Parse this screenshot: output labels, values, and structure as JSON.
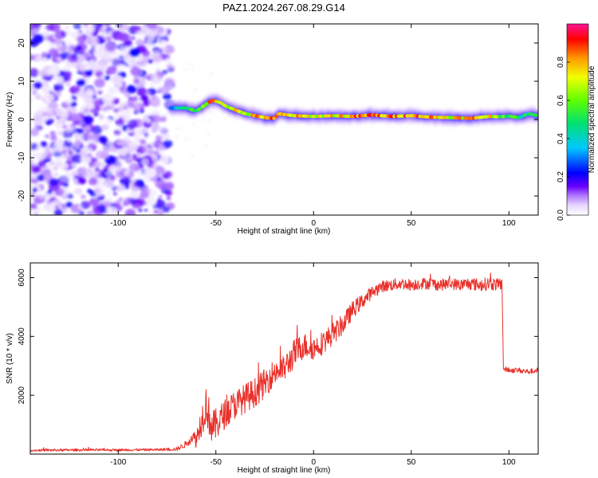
{
  "figure_title": "PAZ1.2024.267.08.29.G14",
  "colors": {
    "snr_line": "#e8302a",
    "colormap": [
      "#ffffff",
      "#e8d8ff",
      "#b27cff",
      "#6a00ff",
      "#0000ff",
      "#00c8ff",
      "#00e070",
      "#60ff00",
      "#f0ff00",
      "#ff9a00",
      "#ff0000",
      "#ff1493"
    ]
  },
  "chart_data": [
    {
      "type": "heatmap",
      "title": "",
      "xlabel": "Height of straight line (km)",
      "ylabel": "Frequency (Hz)",
      "xlim": [
        -145,
        115
      ],
      "ylim": [
        -25,
        25
      ],
      "x_ticks": [
        -100,
        -50,
        0,
        50,
        100
      ],
      "y_ticks": [
        -20,
        -10,
        0,
        10,
        20
      ],
      "colorbar": {
        "label": "Normalized spectral amplitude",
        "range": [
          0,
          1
        ],
        "ticks": [
          "0.0",
          "0.2",
          "0.4",
          "0.6",
          "0.8"
        ]
      },
      "noise_region_x": [
        -145,
        -73
      ],
      "ridge": {
        "x": [
          -73,
          -65,
          -60,
          -55,
          -52,
          -48,
          -45,
          -40,
          -35,
          -30,
          -25,
          -20,
          -18,
          -10,
          0,
          10,
          20,
          30,
          40,
          50,
          60,
          70,
          80,
          90,
          95,
          100,
          105,
          110,
          115
        ],
        "y": [
          3,
          3,
          2.2,
          4,
          5,
          4.5,
          3.5,
          2.5,
          1.5,
          1,
          0.5,
          0.3,
          1.5,
          1,
          0.8,
          1,
          0.8,
          1.2,
          0.8,
          1,
          0.6,
          0.5,
          0.3,
          0.8,
          0.7,
          0.9,
          0.5,
          1.5,
          1
        ],
        "amplitude": [
          0.3,
          0.6,
          0.5,
          0.75,
          0.9,
          0.85,
          0.75,
          0.8,
          0.7,
          0.8,
          0.9,
          0.85,
          0.8,
          0.8,
          0.75,
          0.8,
          0.85,
          0.9,
          0.85,
          0.95,
          0.85,
          0.8,
          0.85,
          0.8,
          0.7,
          0.6,
          0.5,
          0.5,
          0.5
        ]
      }
    },
    {
      "type": "line",
      "title": "",
      "xlabel": "Height of straight line (km)",
      "ylabel": "SNR (10 * v/v)",
      "xlim": [
        -145,
        115
      ],
      "ylim": [
        0,
        6500
      ],
      "x_ticks": [
        -100,
        -50,
        0,
        50,
        100
      ],
      "y_ticks": [
        2000,
        4000,
        6000
      ],
      "series": [
        {
          "x": [
            -145,
            -120,
            -100,
            -80,
            -70,
            -65,
            -62,
            -60,
            -58,
            -55,
            -52,
            -50,
            -45,
            -40,
            -35,
            -30,
            -25,
            -20,
            -15,
            -10,
            -5,
            0,
            5,
            10,
            15,
            20,
            25,
            30,
            35,
            40,
            45,
            50,
            55,
            60,
            65,
            70,
            75,
            80,
            85,
            90,
            95,
            96.5,
            97,
            100,
            105,
            110,
            115
          ],
          "values": [
            130,
            140,
            140,
            150,
            170,
            350,
            600,
            500,
            1000,
            1700,
            900,
            1000,
            1400,
            1700,
            1900,
            2100,
            2400,
            2800,
            2900,
            3400,
            3700,
            3600,
            3800,
            4100,
            4400,
            4900,
            5200,
            5500,
            5700,
            5750,
            5800,
            5750,
            5800,
            5800,
            5750,
            5800,
            5750,
            5800,
            5750,
            5800,
            5750,
            5800,
            2900,
            2850,
            2850,
            2800,
            2850
          ],
          "noise_amplitude": [
            40,
            40,
            40,
            40,
            60,
            120,
            200,
            300,
            500,
            700,
            600,
            550,
            500,
            500,
            500,
            500,
            500,
            450,
            450,
            500,
            450,
            400,
            400,
            380,
            350,
            300,
            250,
            220,
            200,
            200,
            200,
            200,
            200,
            200,
            200,
            200,
            200,
            220,
            220,
            220,
            220,
            220,
            90,
            90,
            90,
            90,
            90
          ]
        }
      ]
    }
  ]
}
